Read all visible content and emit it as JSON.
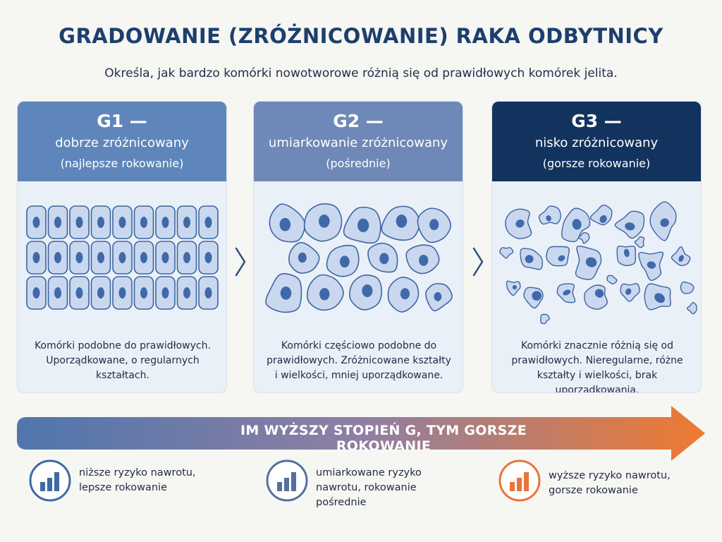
{
  "title": "GRADOWANIE (ZRÓŻNICOWANIE) RAKA ODBYTNICY",
  "subtitle": "Określa, jak bardzo komórki nowotworowe różnią się od prawidłowych komórek jelita.",
  "grades": [
    {
      "grade": "G1 —",
      "name": "dobrze zróżnicowany",
      "note": "(najlepsze rokowanie)",
      "desc_lines": [
        "Komórki podobne do prawidłowych.",
        "Uporządkowane, o regularnych kształtach."
      ]
    },
    {
      "grade": "G2 —",
      "name": "umiarkowanie zróżnicowany",
      "note": "(pośrednie)",
      "desc_lines": [
        "Komórki częściowo podobne do",
        "prawidłowych. Zróżnicowane kształty",
        "i wielkości, mniej uporządkowane."
      ]
    },
    {
      "grade": "G3 —",
      "name": "nisko zróżnicowany",
      "note": "(gorsze rokowanie)",
      "desc_lines": [
        "Komórki znacznie różnią się od",
        "prawidłowych. Nieregularne, różne",
        "kształty i wielkości, brak uporządkowania."
      ]
    }
  ],
  "arrow_label": "IM WYŻSZY STOPIEŃ G, TYM GORSZE ROKOWANIE",
  "legend": [
    {
      "lines": [
        "niższe ryzyko nawrotu,",
        "lepsze rokowanie"
      ],
      "color": "#3f6aa3",
      "icon": "bar-chart-icon"
    },
    {
      "lines": [
        "umiarkowane ryzyko",
        "nawrotu, rokowanie",
        "pośrednie"
      ],
      "color": "#54709e",
      "icon": "bar-chart-icon"
    },
    {
      "lines": [
        "wyższe ryzyko nawrotu,",
        "gorsze rokowanie"
      ],
      "color": "#e9743a",
      "icon": "bar-chart-icon"
    }
  ],
  "colors": {
    "g1_header": "#5f86bb",
    "g2_header": "#6e89b7",
    "g3_header": "#13335f",
    "cell_fill": "#c9d8ef",
    "cell_stroke": "#3e64a0",
    "nucleus": "#3f69aa",
    "arrow_start": "#4f76ad",
    "arrow_end": "#ef7a30"
  }
}
